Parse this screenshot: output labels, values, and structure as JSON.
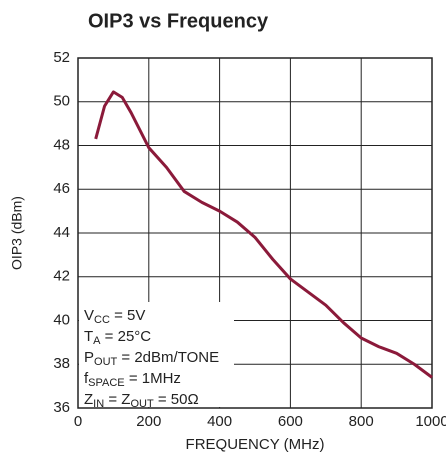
{
  "chart_data": {
    "type": "line",
    "title": "OIP3 vs Frequency",
    "xlabel": "FREQUENCY (MHz)",
    "ylabel": "OIP3 (dBm)",
    "x": [
      50,
      75,
      100,
      125,
      150,
      175,
      200,
      250,
      300,
      350,
      400,
      450,
      500,
      550,
      600,
      650,
      700,
      750,
      800,
      850,
      900,
      950,
      1000
    ],
    "series": [
      {
        "name": "OIP3",
        "color": "#8b1a3a",
        "values": [
          48.3,
          49.8,
          50.45,
          50.2,
          49.5,
          48.7,
          47.9,
          47.0,
          45.9,
          45.4,
          45.0,
          44.5,
          43.8,
          42.8,
          41.9,
          41.3,
          40.7,
          39.9,
          39.2,
          38.8,
          38.5,
          38.0,
          37.4
        ]
      }
    ],
    "xlim": [
      0,
      1000
    ],
    "xticks": [
      0,
      200,
      400,
      600,
      800,
      1000
    ],
    "ylim": [
      36,
      52
    ],
    "yticks": [
      36,
      38,
      40,
      42,
      44,
      46,
      48,
      50,
      52
    ],
    "grid": true,
    "annotation": [
      [
        "V",
        "CC",
        " = 5V"
      ],
      [
        "T",
        "A",
        " = 25°C"
      ],
      [
        "P",
        "OUT",
        " = 2dBm/TONE"
      ],
      [
        "f",
        "SPACE",
        " = 1MHz"
      ],
      [
        "Z",
        "IN",
        " = Z",
        "OUT",
        " = 50Ω"
      ]
    ]
  }
}
